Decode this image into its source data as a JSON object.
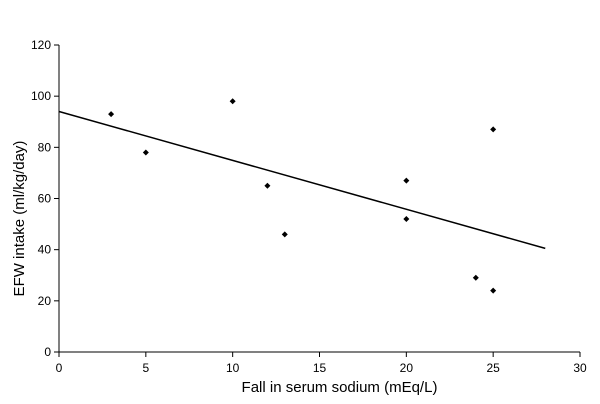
{
  "chart_data": {
    "type": "scatter",
    "title": "",
    "xlabel": "Fall in serum sodium (mEq/L)",
    "ylabel": "EFW intake (ml/kg/day)",
    "xlim": [
      0,
      30
    ],
    "ylim": [
      0,
      120
    ],
    "xticks": [
      0,
      5,
      10,
      15,
      20,
      25,
      30
    ],
    "yticks": [
      0,
      20,
      40,
      60,
      80,
      100,
      120
    ],
    "grid": false,
    "legend": "none",
    "series": [
      {
        "points": [
          {
            "x": 3,
            "y": 93
          },
          {
            "x": 5,
            "y": 78
          },
          {
            "x": 10,
            "y": 98
          },
          {
            "x": 12,
            "y": 65
          },
          {
            "x": 13,
            "y": 46
          },
          {
            "x": 20,
            "y": 67
          },
          {
            "x": 20,
            "y": 52
          },
          {
            "x": 24,
            "y": 29
          },
          {
            "x": 25,
            "y": 87
          },
          {
            "x": 25,
            "y": 24
          }
        ]
      }
    ],
    "trendline": {
      "type": "linear",
      "x": [
        0,
        28
      ],
      "y": [
        94,
        40.5
      ]
    },
    "colors": {
      "marker": "#000000",
      "line": "#000000",
      "axis": "#000000",
      "background": "#ffffff"
    }
  }
}
